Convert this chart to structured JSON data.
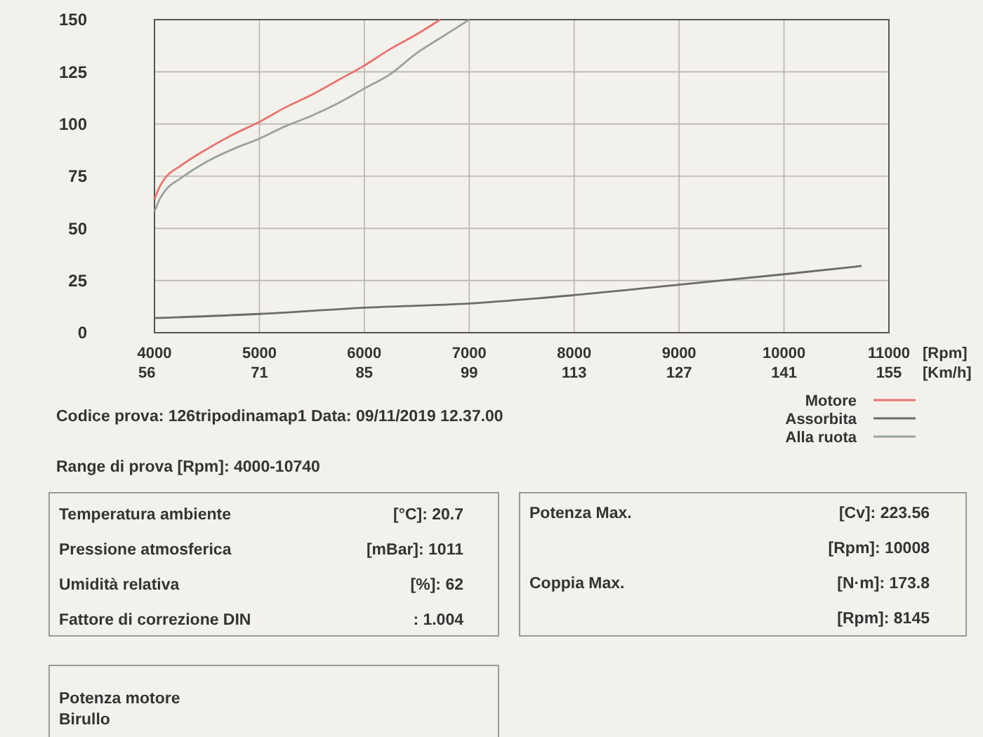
{
  "chart_data": {
    "type": "line",
    "xlabel": "[Rpm]",
    "x2label": "[Km/h]",
    "xlim": [
      4000,
      11000
    ],
    "xticks": [
      4000,
      5000,
      6000,
      7000,
      8000,
      9000,
      10000,
      11000
    ],
    "x2lim": [
      56,
      155
    ],
    "x2ticks": [
      56,
      71,
      85,
      99,
      113,
      127,
      141,
      155
    ],
    "ylim": [
      0,
      150
    ],
    "yticks": [
      0,
      25,
      50,
      75,
      100,
      125,
      150
    ],
    "grid": true,
    "legend": "bottom right",
    "line_style": "solid",
    "marker": "none",
    "series": [
      {
        "name": "Motore",
        "color": "#e8736f",
        "x": [
          4000,
          4050,
          4100,
          4250,
          4500,
          4750,
          5000,
          5250,
          5500,
          5750,
          6000,
          6250,
          6500,
          6724
        ],
        "values": [
          64,
          70,
          74,
          80,
          88,
          95,
          101,
          108,
          114,
          121,
          128,
          136,
          143,
          150
        ]
      },
      {
        "name": "Assorbita",
        "color": "#6b6b6b",
        "x": [
          4000,
          5000,
          6000,
          7000,
          8000,
          9000,
          10000,
          10740
        ],
        "values": [
          7,
          9,
          12,
          14,
          18,
          23,
          28,
          32
        ]
      },
      {
        "name": "Alla ruota",
        "color": "#9aa3a0",
        "x": [
          4000,
          4050,
          4100,
          4250,
          4500,
          4750,
          5000,
          5250,
          5500,
          5750,
          6000,
          6250,
          6500,
          6750,
          7000
        ],
        "values": [
          58,
          64,
          68,
          74,
          82,
          88,
          93,
          99,
          104,
          110,
          117,
          124,
          134,
          142,
          150
        ]
      }
    ],
    "annotations": [
      "Codice prova: 126tripodinamap1  Data: 09/11/2019 12.37.00",
      "Range di prova [Rpm]: 4000-10740",
      "Temperatura ambiente",
      "[°C]: 20.7",
      "Pressione atmosferica",
      "[mBar]: 1011",
      "Umidità relativa",
      "[%]: 62",
      "Fattore di correzione DIN",
      ": 1.004",
      "Potenza Max.",
      "[Cv]: 223.56",
      "[Rpm]: 10008",
      "Coppia Max.",
      "[N·m]: 173.8",
      "[Rpm]: 8145",
      "Potenza motore",
      "Birullo"
    ]
  }
}
